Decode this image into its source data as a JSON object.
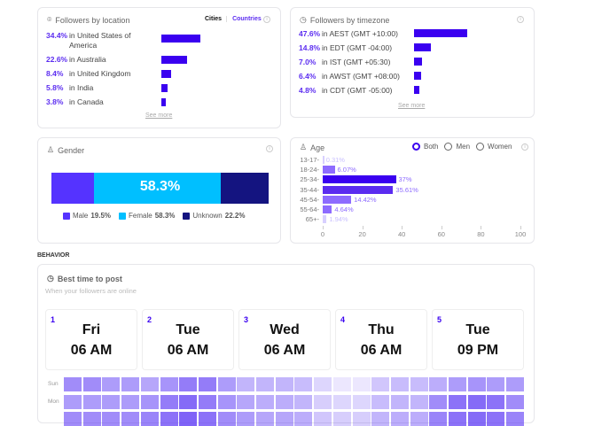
{
  "location": {
    "title": "Followers by location",
    "toggle": [
      "Cities",
      "Countries"
    ],
    "active": "Countries",
    "see_more": "See more",
    "items": [
      {
        "pct": "34.4%",
        "value": 34.4,
        "label": "in United States of America"
      },
      {
        "pct": "22.6%",
        "value": 22.6,
        "label": "in Australia"
      },
      {
        "pct": "8.4%",
        "value": 8.4,
        "label": "in United Kingdom"
      },
      {
        "pct": "5.8%",
        "value": 5.8,
        "label": "in India"
      },
      {
        "pct": "3.8%",
        "value": 3.8,
        "label": "in Canada"
      }
    ]
  },
  "timezone": {
    "title": "Followers by timezone",
    "see_more": "See more",
    "items": [
      {
        "pct": "47.6%",
        "value": 47.6,
        "label": "in AEST (GMT +10:00)"
      },
      {
        "pct": "14.8%",
        "value": 14.8,
        "label": "in EDT (GMT -04:00)"
      },
      {
        "pct": "7.0%",
        "value": 7.0,
        "label": "in IST (GMT +05:30)"
      },
      {
        "pct": "6.4%",
        "value": 6.4,
        "label": "in AWST (GMT +08:00)"
      },
      {
        "pct": "4.8%",
        "value": 4.8,
        "label": "in CDT (GMT -05:00)"
      }
    ]
  },
  "gender": {
    "title": "Gender",
    "center": "58.3%",
    "segments": [
      {
        "name": "Male",
        "pct": "19.5%",
        "value": 19.5,
        "color": "#5533ff"
      },
      {
        "name": "Female",
        "pct": "58.3%",
        "value": 58.3,
        "color": "#00bfff"
      },
      {
        "name": "Unknown",
        "pct": "22.2%",
        "value": 22.2,
        "color": "#141480"
      }
    ]
  },
  "age": {
    "title": "Age",
    "options": [
      "Both",
      "Men",
      "Women"
    ],
    "selected": "Both",
    "ticks": [
      "0",
      "20",
      "40",
      "60",
      "80",
      "100"
    ],
    "items": [
      {
        "label": "13-17-",
        "value": 0.31,
        "text": "0.31%"
      },
      {
        "label": "18-24-",
        "value": 6.07,
        "text": "6.07%"
      },
      {
        "label": "25-34-",
        "value": 37,
        "text": "37%"
      },
      {
        "label": "35-44-",
        "value": 35.61,
        "text": "35.61%"
      },
      {
        "label": "45-54-",
        "value": 14.42,
        "text": "14.42%"
      },
      {
        "label": "55-64-",
        "value": 4.64,
        "text": "4.64%"
      },
      {
        "label": "65+-",
        "value": 1.94,
        "text": "1.94%"
      }
    ]
  },
  "behavior": {
    "section": "BEHAVIOR",
    "title": "Best time to post",
    "subtitle": "When your followers are online",
    "top": [
      {
        "n": "1",
        "day": "Fri",
        "time": "06 AM"
      },
      {
        "n": "2",
        "day": "Tue",
        "time": "06 AM"
      },
      {
        "n": "3",
        "day": "Wed",
        "time": "06 AM"
      },
      {
        "n": "4",
        "day": "Thu",
        "time": "06 AM"
      },
      {
        "n": "5",
        "day": "Tue",
        "time": "09 PM"
      }
    ],
    "heatmap": {
      "rows": [
        "Sun",
        "Mon",
        ""
      ],
      "values": [
        [
          0.6,
          0.6,
          0.5,
          0.5,
          0.45,
          0.55,
          0.7,
          0.7,
          0.5,
          0.35,
          0.35,
          0.35,
          0.3,
          0.15,
          0.05,
          0.05,
          0.25,
          0.3,
          0.3,
          0.4,
          0.5,
          0.55,
          0.5,
          0.5
        ],
        [
          0.5,
          0.5,
          0.5,
          0.5,
          0.55,
          0.7,
          0.8,
          0.7,
          0.55,
          0.45,
          0.4,
          0.4,
          0.35,
          0.2,
          0.15,
          0.15,
          0.3,
          0.35,
          0.35,
          0.6,
          0.75,
          0.8,
          0.75,
          0.6
        ],
        [
          0.6,
          0.6,
          0.6,
          0.6,
          0.65,
          0.75,
          0.85,
          0.75,
          0.6,
          0.5,
          0.45,
          0.45,
          0.4,
          0.25,
          0.2,
          0.2,
          0.35,
          0.4,
          0.4,
          0.65,
          0.75,
          0.8,
          0.75,
          0.65
        ]
      ]
    }
  }
}
